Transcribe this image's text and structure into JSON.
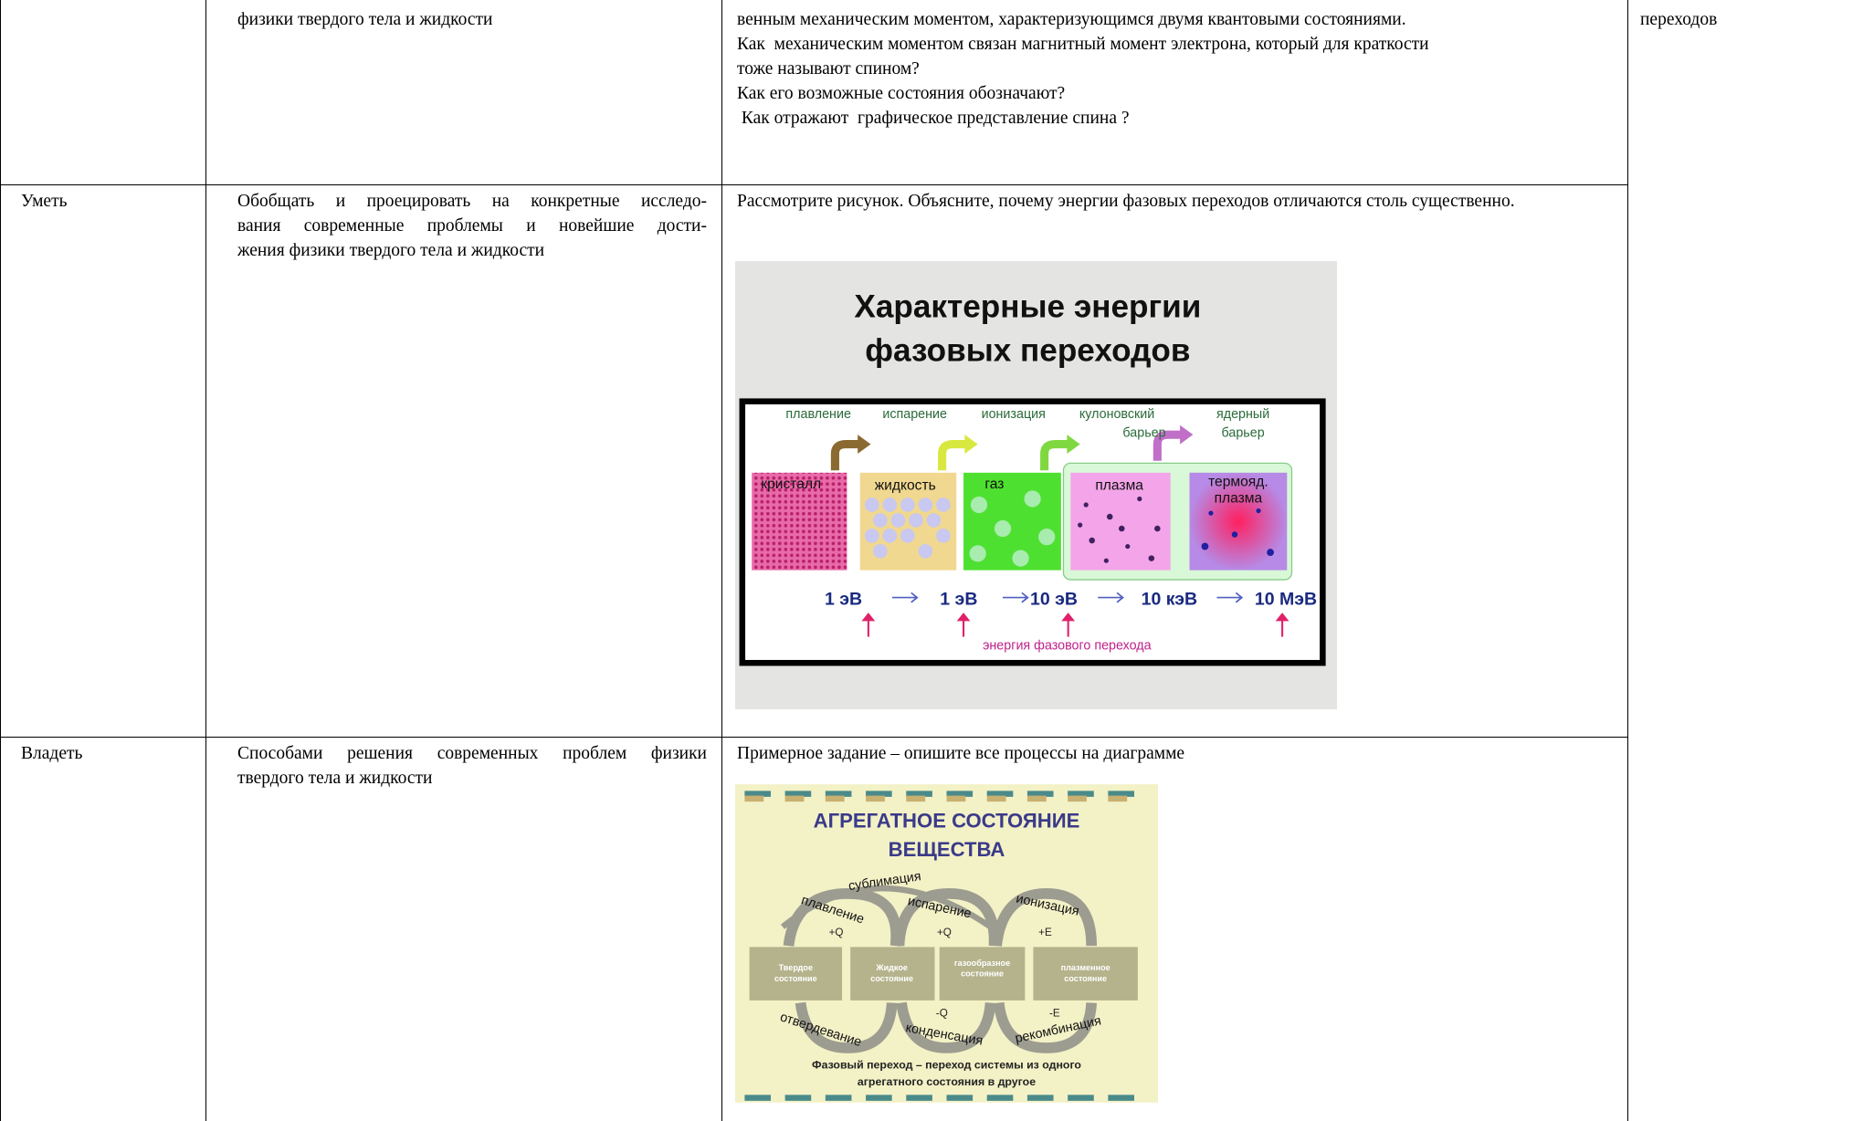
{
  "table": {
    "rows": [
      {
        "topic": "физики твердого тела и жидкости",
        "task": [
          "венным механическим моментом, характеризующимся двумя квантовыми состояниями.",
          "Как  механическим моментом связан магнитный момент электрона, который для краткости",
          "тоже называют спином?",
          "Как его возможные состояния обозначают?",
          " Как отражают  графическое представление спина ?"
        ],
        "note": "переходов"
      },
      {
        "level": "Уметь",
        "topic": [
          "Обобщать и проецировать на конкретные исследо-",
          "вания современные проблемы и новейшие дости-",
          "жения физики твердого тела и жидкости"
        ],
        "task": "Рассмотрите рисунок. Объясните, почему энергии фазовых переходов отличаются столь существенно.",
        "figure": {
          "title": [
            "Характерные энергии",
            "фазовых переходов"
          ],
          "processes": [
            [
              "плавление"
            ],
            [
              "испарение"
            ],
            [
              "ионизация"
            ],
            [
              "кулоновский",
              "барьер"
            ],
            [
              "ядерный",
              "барьер"
            ]
          ],
          "states": [
            [
              "кристалл"
            ],
            [
              "жидкость"
            ],
            [
              "газ"
            ],
            [
              "плазма"
            ],
            [
              "термояд.",
              "плазма"
            ]
          ],
          "energies": [
            "1 эВ",
            "1 эВ",
            "10 эВ",
            "10 кэВ",
            "10 МэВ"
          ],
          "caption": "энергия фазового перехода"
        }
      },
      {
        "level": "Владеть",
        "topic": [
          "Способами решения современных проблем  физики",
          "твердого тела и жидкости"
        ],
        "task": "Примерное задание – опишите все процессы на диаграмме",
        "figure": {
          "title": [
            "АГРЕГАТНОЕ  СОСТОЯНИЕ",
            "ВЕЩЕСТВА"
          ],
          "states": [
            [
              "Твердое",
              "состояние"
            ],
            [
              "Жидкое",
              "состояние"
            ],
            [
              "газообразное",
              "состояние"
            ],
            [
              "плазменное",
              "состояние"
            ]
          ],
          "forward": [
            "сублимация",
            "плавление",
            "испарение",
            "ионизация"
          ],
          "heat_in": [
            "+Q",
            "+Q",
            "+E"
          ],
          "backward": [
            "отвердевание",
            "конденсация",
            "рекомбинация"
          ],
          "heat_out": [
            "-Q",
            "-E"
          ],
          "footer": [
            "Фазовый переход – переход системы из одного",
            "агрегатного состояния в другое"
          ]
        }
      }
    ]
  }
}
